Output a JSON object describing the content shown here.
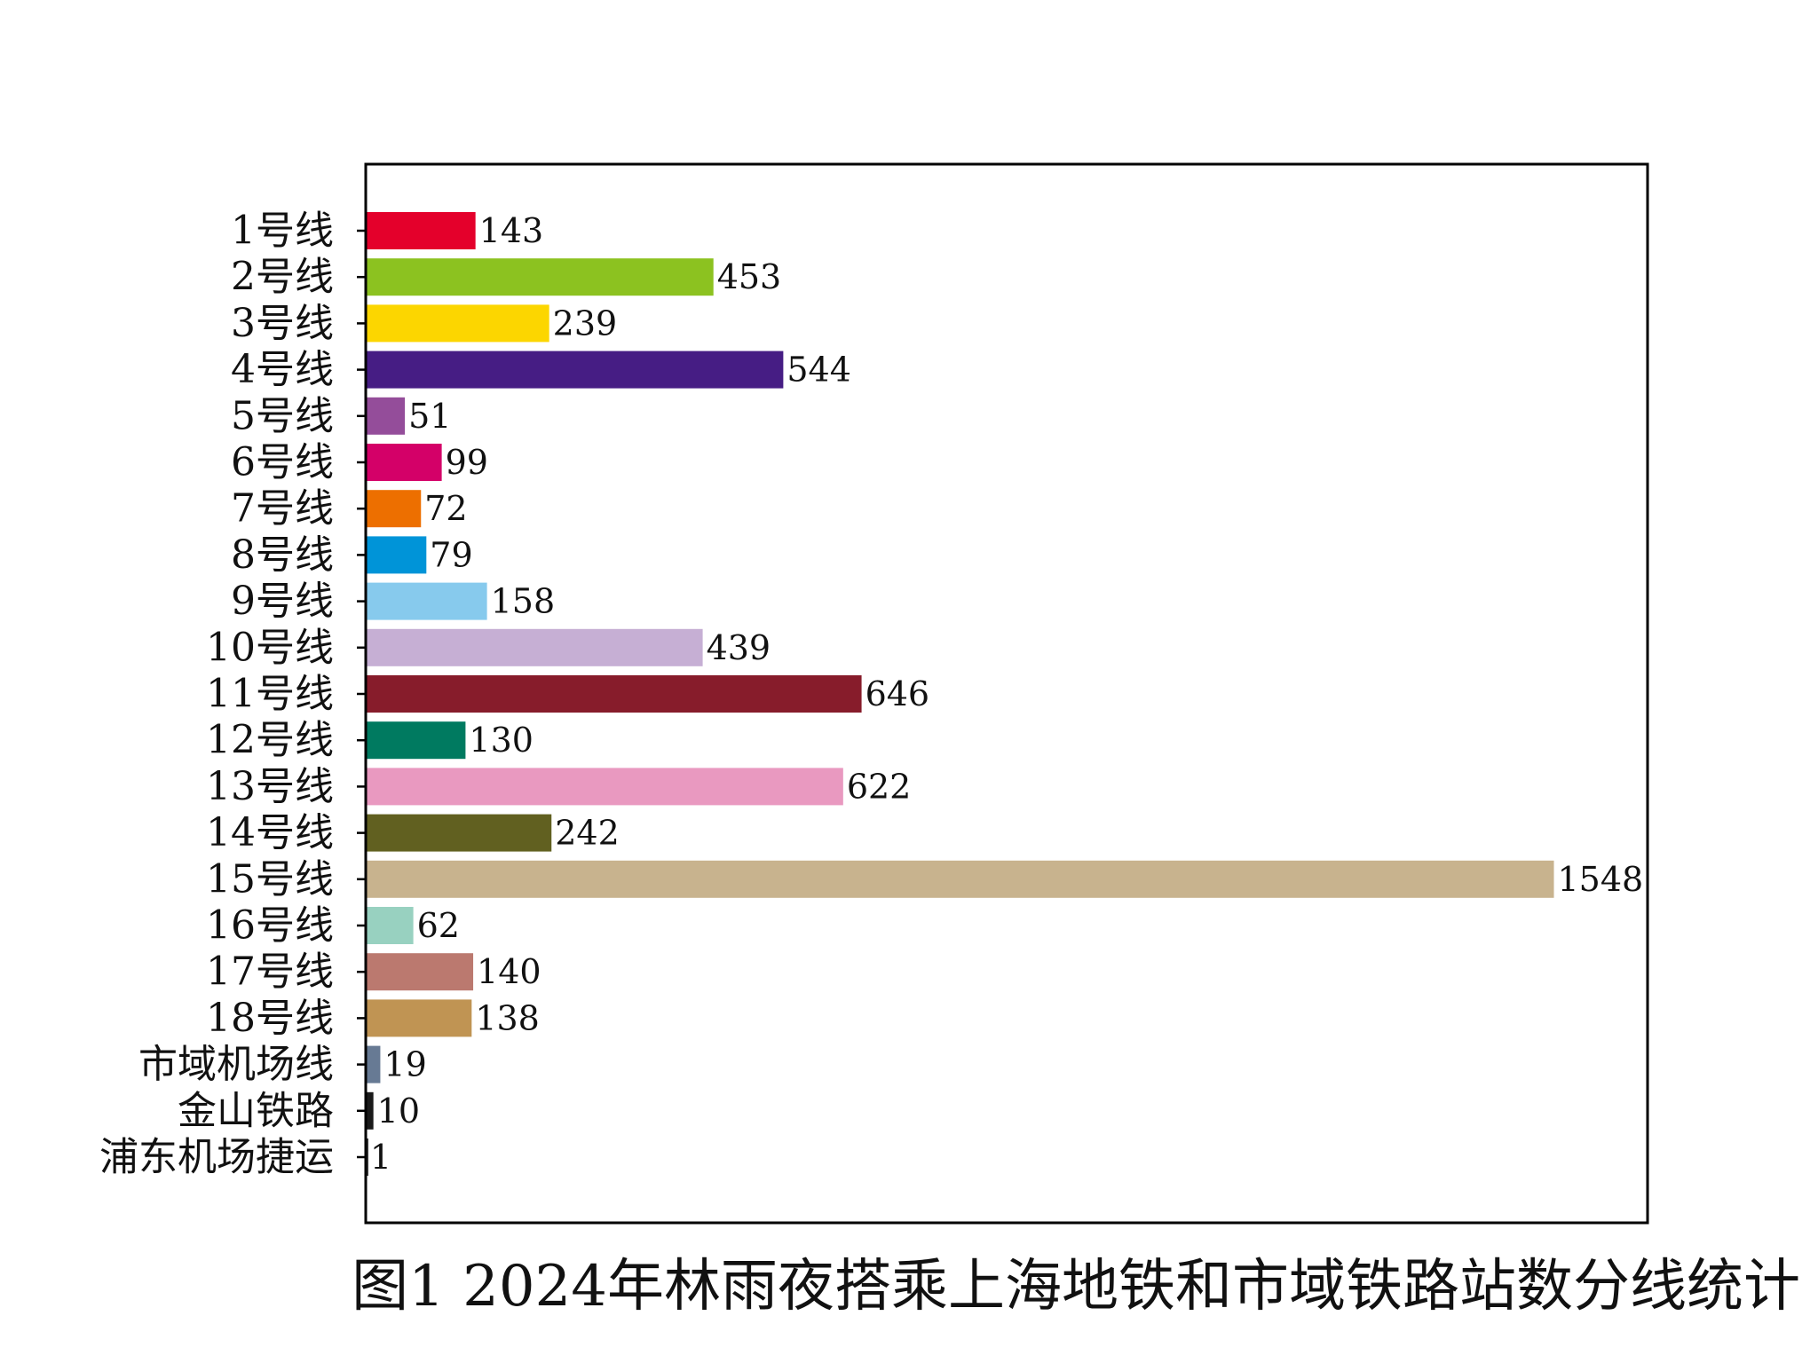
{
  "chart_data": {
    "type": "bar",
    "orientation": "horizontal",
    "caption": "图1 2024年林雨夜搭乘上海地铁和市域铁路站数分线统计",
    "categories": [
      "1号线",
      "2号线",
      "3号线",
      "4号线",
      "5号线",
      "6号线",
      "7号线",
      "8号线",
      "9号线",
      "10号线",
      "11号线",
      "12号线",
      "13号线",
      "14号线",
      "15号线",
      "16号线",
      "17号线",
      "18号线",
      "市域机场线",
      "金山铁路",
      "浦东机场捷运"
    ],
    "values": [
      143,
      453,
      239,
      544,
      51,
      99,
      72,
      79,
      158,
      439,
      646,
      130,
      622,
      242,
      1548,
      62,
      140,
      138,
      19,
      10,
      1
    ],
    "colors": [
      "#e4002b",
      "#8cc220",
      "#fcd600",
      "#461d84",
      "#944d9a",
      "#d40068",
      "#ed6f00",
      "#0094d8",
      "#87caed",
      "#c6afd4",
      "#871c2b",
      "#007a60",
      "#e999c0",
      "#616020",
      "#c8b38e",
      "#98d1c0",
      "#bb796f",
      "#c09453",
      "#677a94",
      "#1a1a1a",
      "#3a3a3a"
    ],
    "xlim": [
      0,
      1670
    ],
    "grid": false,
    "xticks_shown": false
  }
}
